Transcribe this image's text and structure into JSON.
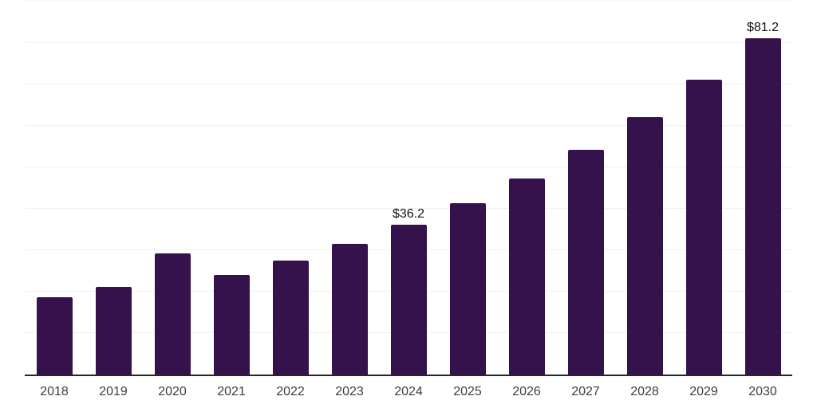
{
  "chart": {
    "background": "#ffffff",
    "bar_color": "#36124D",
    "axis_color": "#262626",
    "gridline_color": "#f0f0f0",
    "value_label_color": "#111111",
    "tick_label_color": "#3d3d3d"
  },
  "chart_data": {
    "type": "bar",
    "title": "",
    "xlabel": "",
    "ylabel": "",
    "categories": [
      "2018",
      "2019",
      "2020",
      "2021",
      "2022",
      "2023",
      "2024",
      "2025",
      "2026",
      "2027",
      "2028",
      "2029",
      "2030"
    ],
    "values": [
      18.7,
      21.1,
      29.2,
      24.0,
      27.5,
      31.6,
      36.2,
      41.4,
      47.4,
      54.3,
      62.2,
      71.1,
      81.2
    ],
    "value_prefix": "$",
    "bar_labels": [
      "",
      "",
      "",
      "",
      "",
      "",
      "$36.2",
      "",
      "",
      "",
      "",
      "",
      "$81.2"
    ],
    "ylim": [
      0,
      90
    ],
    "gridline_step": 10,
    "grid": "horizontal",
    "legend_position": "none",
    "y_tick_labels_visible": false
  }
}
